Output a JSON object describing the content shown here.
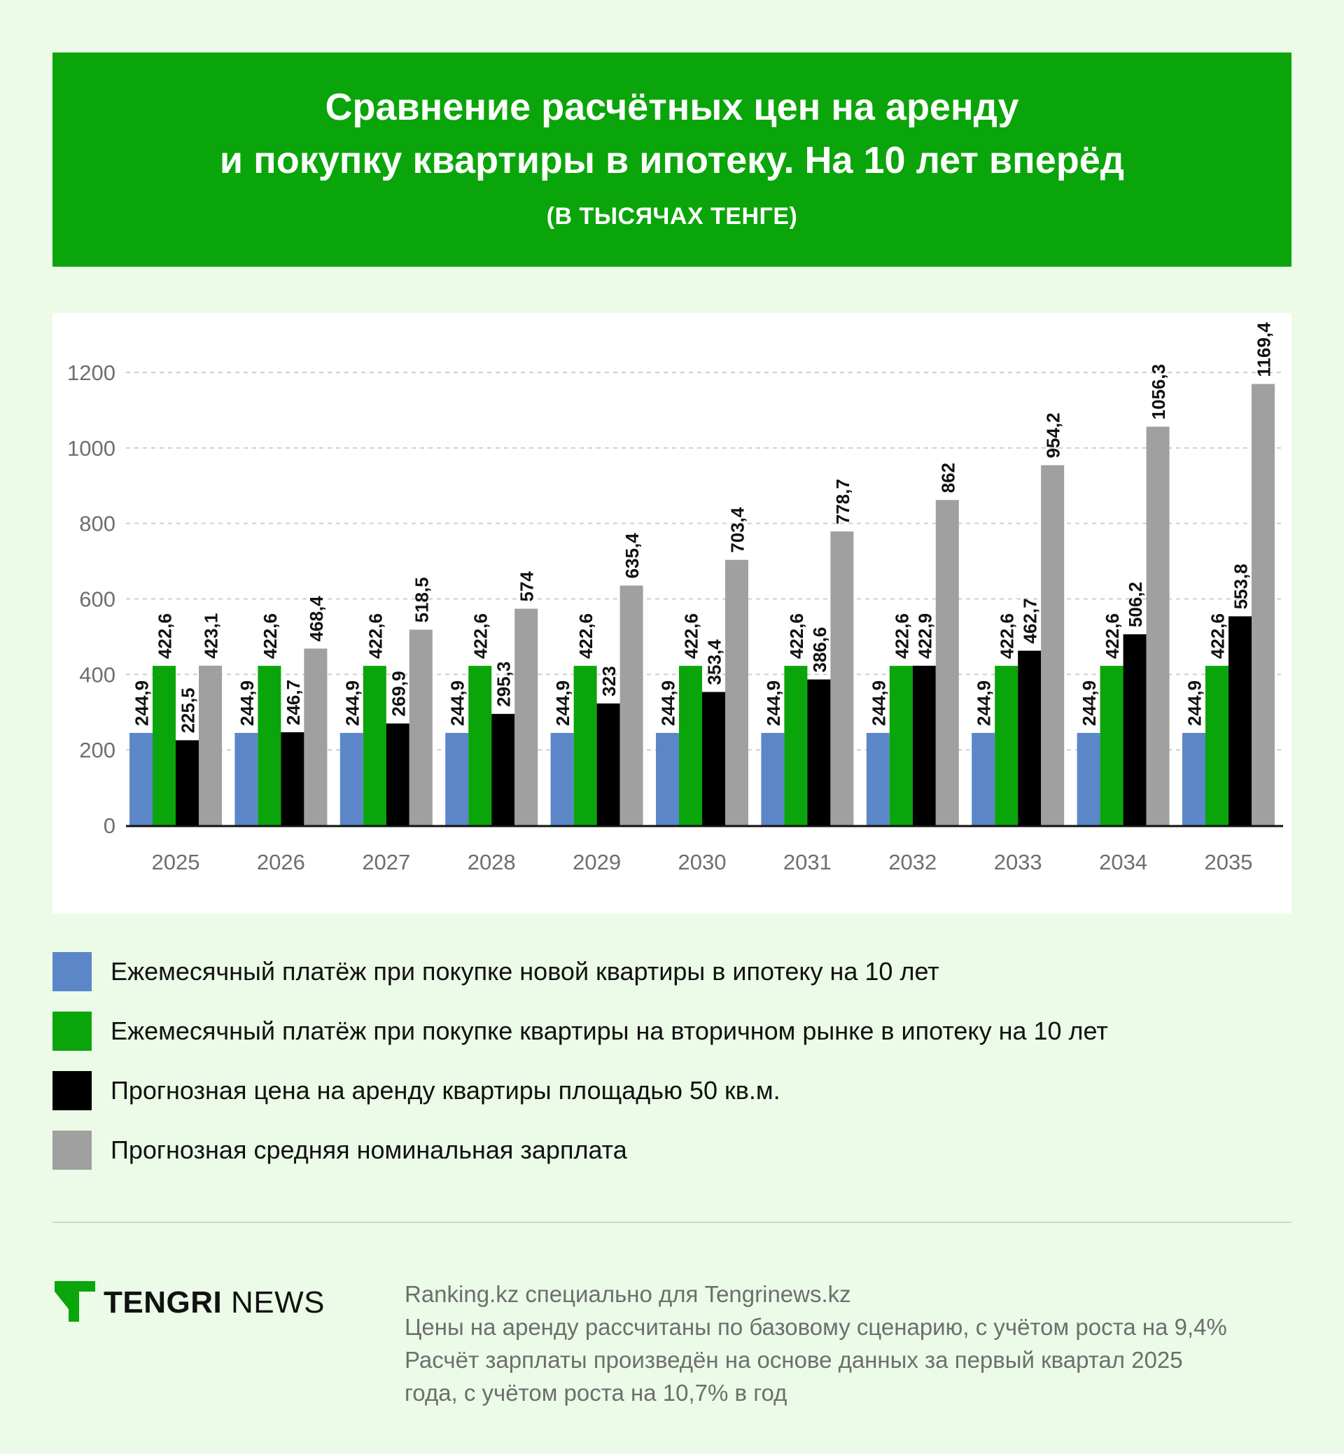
{
  "header": {
    "title_line1": "Сравнение расчётных цен на аренду",
    "title_line2": "и покупку квартиры в ипотеку. На 10 лет вперёд",
    "subtitle": "(В ТЫСЯЧАХ ТЕНГЕ)"
  },
  "chart_data": {
    "type": "bar",
    "categories": [
      "2025",
      "2026",
      "2027",
      "2028",
      "2029",
      "2030",
      "2031",
      "2032",
      "2033",
      "2034",
      "2035"
    ],
    "ylim": [
      0,
      1200
    ],
    "yticks": [
      0,
      200,
      400,
      600,
      800,
      1000,
      1200
    ],
    "grid": true,
    "series": [
      {
        "name": "Ежемесячный платёж при покупке новой квартиры в ипотеку на 10 лет",
        "color": "#5b87c9",
        "values": [
          244.9,
          244.9,
          244.9,
          244.9,
          244.9,
          244.9,
          244.9,
          244.9,
          244.9,
          244.9,
          244.9
        ],
        "labels": [
          "244,9",
          "244,9",
          "244,9",
          "244,9",
          "244,9",
          "244,9",
          "244,9",
          "244,9",
          "244,9",
          "244,9",
          "244,9"
        ]
      },
      {
        "name": "Ежемесячный платёж при покупке квартиры на вторичном рынке в ипотеку на 10 лет",
        "color": "#0aa50a",
        "values": [
          422.6,
          422.6,
          422.6,
          422.6,
          422.6,
          422.6,
          422.6,
          422.6,
          422.6,
          422.6,
          422.6
        ],
        "labels": [
          "422,6",
          "422,6",
          "422,6",
          "422,6",
          "422,6",
          "422,6",
          "422,6",
          "422,6",
          "422,6",
          "422,6",
          "422,6"
        ]
      },
      {
        "name": "Прогнозная цена на аренду квартиры площадью 50 кв.м.",
        "color": "#000000",
        "values": [
          225.5,
          246.7,
          269.9,
          295.3,
          323,
          353.4,
          386.6,
          422.9,
          462.7,
          506.2,
          553.8
        ],
        "labels": [
          "225,5",
          "246,7",
          "269,9",
          "295,3",
          "323",
          "353,4",
          "386,6",
          "422,9",
          "462,7",
          "506,2",
          "553,8"
        ]
      },
      {
        "name": "Прогнозная средняя номинальная зарплата",
        "color": "#a0a0a0",
        "values": [
          423.1,
          468.4,
          518.5,
          574,
          635.4,
          703.4,
          778.7,
          862,
          954.2,
          1056.3,
          1169.4
        ],
        "labels": [
          "423,1",
          "468,4",
          "518,5",
          "574",
          "635,4",
          "703,4",
          "778,7",
          "862",
          "954,2",
          "1056,3",
          "1169,4"
        ]
      }
    ]
  },
  "legend": [
    {
      "label": "Ежемесячный платёж при покупке новой квартиры в ипотеку на 10 лет",
      "color": "#5b87c9"
    },
    {
      "label": "Ежемесячный платёж при покупке квартиры на вторичном рынке в ипотеку на 10 лет",
      "color": "#0aa50a"
    },
    {
      "label": "Прогнозная цена на аренду квартиры площадью 50 кв.м.",
      "color": "#000000"
    },
    {
      "label": "Прогнозная средняя номинальная зарплата",
      "color": "#a0a0a0"
    }
  ],
  "footer": {
    "logo_bold": "TENGRI",
    "logo_light": "NEWS",
    "source_lines": [
      "Ranking.kz специально для Tengrinews.kz",
      "Цены на аренду рассчитаны по базовому сценарию, с учётом роста на 9,4%",
      "Расчёт зарплаты произведён на основе данных за первый квартал 2025",
      "года, с учётом роста на 10,7% в год"
    ]
  }
}
